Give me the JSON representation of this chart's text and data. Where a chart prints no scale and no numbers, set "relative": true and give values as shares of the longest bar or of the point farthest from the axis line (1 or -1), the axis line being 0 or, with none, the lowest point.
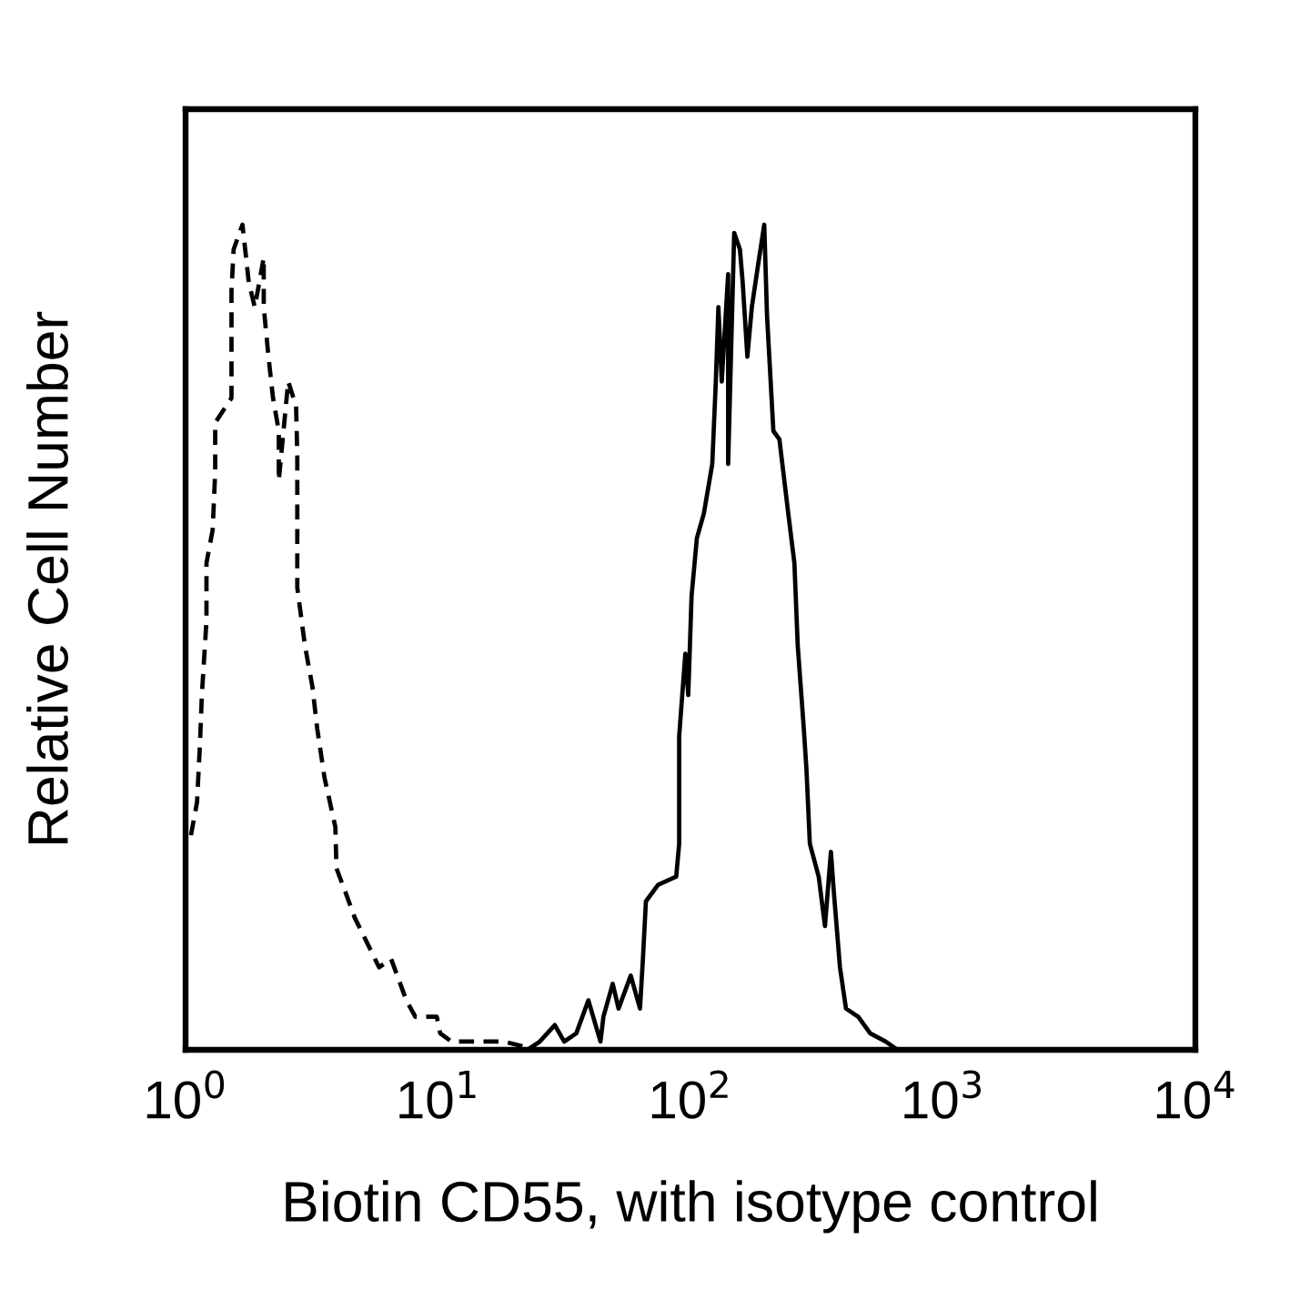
{
  "chart_data": {
    "type": "line",
    "xlabel": "Biotin CD55, with isotype control",
    "ylabel": "Relative Cell Number",
    "log": "x",
    "xlim": [
      1,
      10000
    ],
    "xticks": [
      {
        "value": 1,
        "label": "10$^{0}$"
      },
      {
        "value": 10,
        "label": "10$^{1}$"
      },
      {
        "value": 100,
        "label": "10$^{2}$"
      },
      {
        "value": 1000,
        "label": "10$^{3}$"
      },
      {
        "value": 10000,
        "label": "10$^{4}$"
      }
    ],
    "relative": true,
    "grid": false,
    "series": [
      {
        "color": "#000000",
        "line_style": "dashed",
        "x": [
          1.05,
          1.11,
          1.14,
          1.16,
          1.21,
          1.21,
          1.28,
          1.31,
          1.31,
          1.52,
          1.52,
          1.55,
          1.68,
          1.78,
          1.88,
          2.04,
          2.04,
          2.13,
          2.22,
          2.34,
          2.34,
          2.55,
          2.74,
          2.77,
          2.77,
          2.77,
          2.97,
          3.18,
          3.32,
          3.55,
          3.92,
          3.96,
          4.31,
          4.68,
          5.23,
          5.84,
          6.52,
          7.49,
          8.13,
          9.89,
          10.2,
          11.3,
          18.2,
          24.6
        ],
        "values": [
          0.26,
          0.3,
          0.37,
          0.43,
          0.52,
          0.59,
          0.63,
          0.7,
          0.76,
          0.79,
          0.92,
          0.97,
          1.0,
          0.93,
          0.9,
          0.96,
          0.9,
          0.84,
          0.79,
          0.75,
          0.69,
          0.81,
          0.78,
          0.72,
          0.66,
          0.56,
          0.49,
          0.44,
          0.39,
          0.33,
          0.27,
          0.22,
          0.19,
          0.16,
          0.13,
          0.1,
          0.11,
          0.06,
          0.04,
          0.04,
          0.02,
          0.01,
          0.01,
          0
        ]
      },
      {
        "color": "#000000",
        "line_style": "solid",
        "x": [
          22.6,
          25.3,
          29.0,
          31.6,
          35.3,
          39.4,
          44.0,
          45.2,
          49.2,
          51.9,
          58.0,
          63.1,
          64.8,
          66.6,
          74.4,
          87.8,
          90.2,
          90.2,
          95.4,
          98.0,
          101,
          106,
          113,
          122,
          126,
          129,
          133,
          141,
          141,
          149,
          157,
          161,
          168,
          175,
          185,
          196,
          201,
          213,
          225,
          244,
          258,
          266,
          281,
          288,
          297,
          322,
          341,
          360,
          370,
          391,
          413,
          462,
          515,
          593,
          661
        ],
        "values": [
          0,
          0.01,
          0.03,
          0.01,
          0.02,
          0.06,
          0.01,
          0.04,
          0.08,
          0.05,
          0.09,
          0.05,
          0.11,
          0.18,
          0.2,
          0.21,
          0.25,
          0.38,
          0.48,
          0.43,
          0.55,
          0.62,
          0.65,
          0.71,
          0.81,
          0.9,
          0.81,
          0.94,
          0.71,
          0.99,
          0.97,
          0.93,
          0.84,
          0.9,
          0.95,
          1.0,
          0.89,
          0.75,
          0.74,
          0.65,
          0.59,
          0.49,
          0.39,
          0.34,
          0.25,
          0.21,
          0.15,
          0.24,
          0.19,
          0.1,
          0.05,
          0.04,
          0.02,
          0.01,
          0
        ]
      }
    ]
  }
}
